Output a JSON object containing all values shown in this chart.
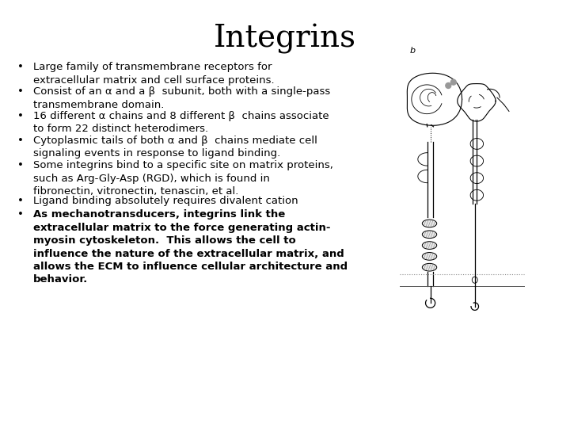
{
  "title": "Integrins",
  "title_fontsize": 28,
  "bg_color": "#ffffff",
  "text_color": "#000000",
  "bullet_fontsize": 9.5,
  "bullets": [
    {
      "text": "Large family of transmembrane receptors for\nextracellular matrix and cell surface proteins.",
      "bold": false
    },
    {
      "text": "Consist of an α and a β  subunit, both with a single-pass\ntransmembrane domain.",
      "bold": false
    },
    {
      "text": "16 different α chains and 8 different β  chains associate\nto form 22 distinct heterodimers.",
      "bold": false
    },
    {
      "text": "Cytoplasmic tails of both α and β  chains mediate cell\nsignaling events in response to ligand binding.",
      "bold": false
    },
    {
      "text": "Some integrins bind to a specific site on matrix proteins,\nsuch as Arg-Gly-Asp (RGD), which is found in\nfibronectin, vitronectin, tenascin, et al.",
      "bold": false
    },
    {
      "text": "Ligand binding absolutely requires divalent cation",
      "bold": false
    },
    {
      "text": "As mechanotransducers, integrins link the\nextracellular matrix to the force generating actin-\nmyosin cytoskeleton.  This allows the cell to\ninfluence the nature of the extracellular matrix, and\nallows the ECM to influence cellular architecture and\nbehavior.",
      "bold": true
    }
  ]
}
